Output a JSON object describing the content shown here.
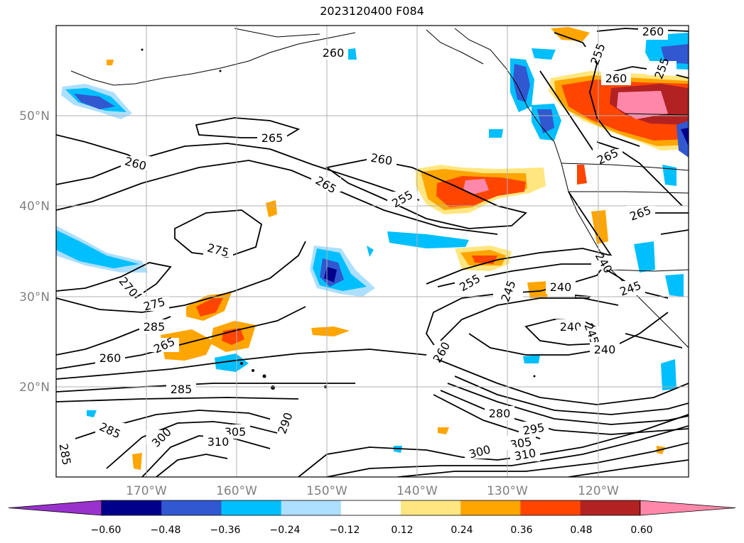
{
  "title": "2023120400 F084",
  "lon_labels": [
    "170°W",
    "160°W",
    "150°W",
    "140°W",
    "130°W",
    "120°W"
  ],
  "lat_labels": [
    "50°N",
    "40°N",
    "30°N",
    "20°N"
  ],
  "colorbar": {
    "ticks": [
      "−0.60",
      "−0.48",
      "−0.36",
      "−0.24",
      "−0.12",
      "0.12",
      "0.24",
      "0.36",
      "0.48",
      "0.60"
    ],
    "colors": [
      "#9932cc",
      "#00008b",
      "#3158d0",
      "#00bfff",
      "#addfff",
      "#ffffff",
      "#ffe680",
      "#ffa500",
      "#ff4500",
      "#b22222",
      "#ff88aa"
    ]
  },
  "contour_labels": [
    "260",
    "265",
    "260",
    "260",
    "255",
    "265",
    "255",
    "260",
    "275",
    "265",
    "270",
    "265",
    "275",
    "285",
    "260",
    "265",
    "255",
    "245",
    "240",
    "260",
    "240",
    "245",
    "240",
    "285",
    "280",
    "290",
    "285",
    "305",
    "300",
    "310",
    "295",
    "300",
    "305",
    "310",
    "285",
    "255",
    "260",
    "245",
    "240"
  ]
}
